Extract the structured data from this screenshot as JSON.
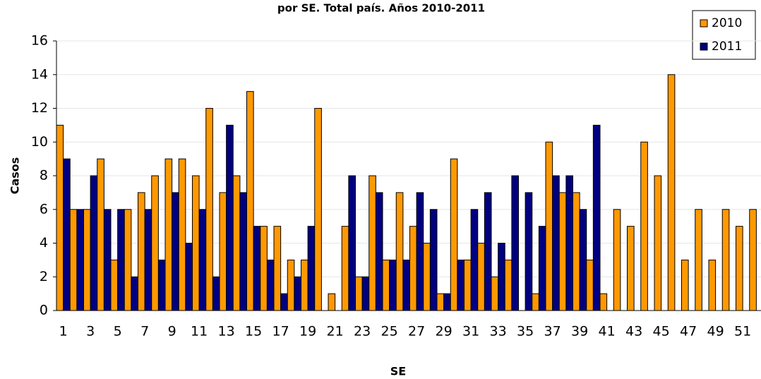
{
  "chart_data": {
    "type": "bar",
    "title": "por SE. Total país. Años 2010-2011",
    "x_label": "SE",
    "y_label": "Casos",
    "categories": [
      "1",
      null,
      "3",
      null,
      "5",
      null,
      "7",
      null,
      "9",
      null,
      "11",
      null,
      "13",
      null,
      "15",
      null,
      "17",
      null,
      "19",
      null,
      "21",
      null,
      "23",
      null,
      "25",
      null,
      "27",
      null,
      "29",
      null,
      "31",
      null,
      "33",
      null,
      "35",
      null,
      "37",
      null,
      "39",
      null,
      "41",
      null,
      "43",
      null,
      "45",
      null,
      "47",
      null,
      "49",
      null,
      "51",
      null
    ],
    "series": [
      {
        "name": "2010",
        "color": "#ff9900",
        "values": [
          11,
          6,
          6,
          9,
          3,
          6,
          7,
          8,
          9,
          9,
          8,
          12,
          7,
          8,
          13,
          5,
          5,
          3,
          3,
          12,
          1,
          5,
          2,
          8,
          3,
          7,
          5,
          4,
          1,
          9,
          3,
          4,
          2,
          3,
          0,
          1,
          10,
          7,
          7,
          3,
          1,
          6,
          5,
          10,
          8,
          14,
          3,
          6,
          3,
          6,
          5,
          6
        ]
      },
      {
        "name": "2011",
        "color": "#000080",
        "values": [
          9,
          6,
          8,
          6,
          6,
          2,
          6,
          3,
          7,
          4,
          6,
          2,
          11,
          7,
          5,
          3,
          1,
          2,
          5,
          0,
          0,
          8,
          2,
          7,
          3,
          3,
          7,
          6,
          1,
          3,
          6,
          7,
          4,
          8,
          7,
          5,
          8,
          8,
          6,
          11,
          null,
          null,
          null,
          null,
          null,
          null,
          null,
          null,
          null,
          null,
          null,
          null
        ]
      }
    ],
    "ylim": [
      0,
      16
    ],
    "yticks": [
      0,
      2,
      4,
      6,
      8,
      10,
      12,
      14,
      16
    ],
    "grid": true,
    "legend": "top-right"
  }
}
